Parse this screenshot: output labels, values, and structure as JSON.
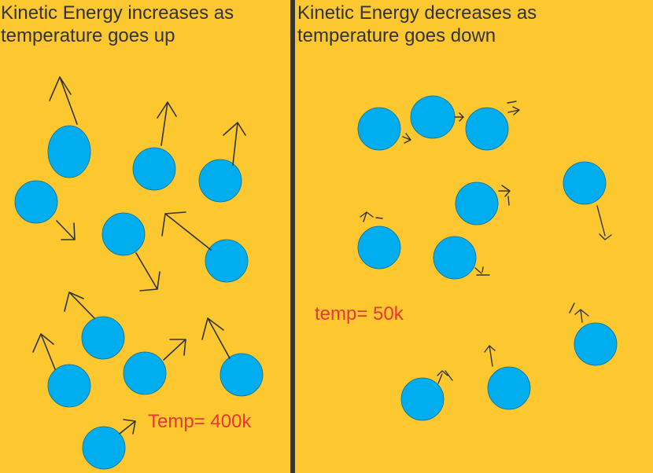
{
  "colors": {
    "background": "#FDC82F",
    "divider": "#333333",
    "particle": "#00AEEF",
    "particle_stroke": "#0B6E91",
    "arrow": "#333333",
    "label": "#E53935",
    "title": "#333333"
  },
  "left": {
    "title": "Kinetic Energy increases as\ntemperature goes up",
    "temp_label": "Temp= 400k"
  },
  "right": {
    "title": "Kinetic Energy decreases as\ntemperature goes down",
    "temp_label": "temp= 50k"
  }
}
